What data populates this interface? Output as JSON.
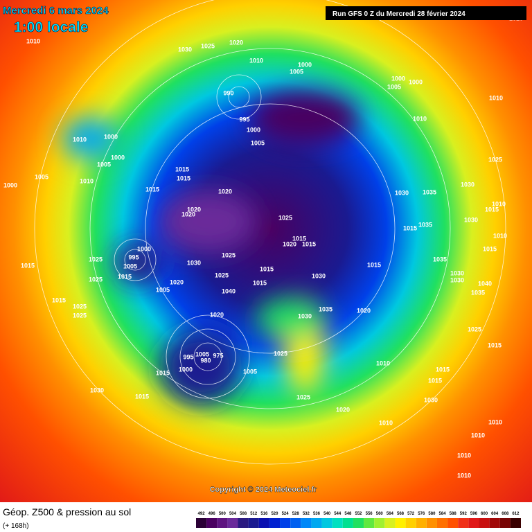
{
  "header": {
    "date": "Mercredi 6 mars 2024",
    "time": "1:00 locale",
    "run": "Run GFS 0 Z du Mercredi 28 février 2024"
  },
  "copyright": "Copyright © 2024 Meteociel.fr",
  "footer": {
    "title": "Géop. Z500 & pression au sol",
    "lead": "(+ 168h)"
  },
  "legend": {
    "ticks": [
      492,
      496,
      500,
      504,
      508,
      512,
      516,
      520,
      524,
      528,
      532,
      536,
      540,
      544,
      548,
      552,
      556,
      560,
      564,
      568,
      572,
      576,
      580,
      584,
      588,
      592,
      596,
      600,
      604,
      608,
      612
    ],
    "colors": [
      "#2a0035",
      "#4a0060",
      "#5e1480",
      "#6a2a9a",
      "#2a1a80",
      "#1a1a90",
      "#0a10b0",
      "#0020d0",
      "#0040e8",
      "#0060f0",
      "#0088f8",
      "#00a8f0",
      "#00c8e0",
      "#00e0c0",
      "#00e090",
      "#20e060",
      "#60e840",
      "#a0f030",
      "#d8f020",
      "#fff000",
      "#ffd000",
      "#ffb000",
      "#ff9000",
      "#ff7000",
      "#ff5000",
      "#f03018",
      "#e01818",
      "#c81010",
      "#a00808",
      "#780404",
      "#3a0000"
    ]
  },
  "pressure_labels": [
    1010,
    1030,
    1025,
    1020,
    1010,
    1000,
    1005,
    990,
    1000,
    1000,
    1005,
    1010,
    1010,
    995,
    1000,
    1005,
    1010,
    1000,
    1000,
    1005,
    1025,
    1015,
    1015,
    1010,
    1005,
    1000,
    1015,
    1020,
    1030,
    1035,
    1030,
    1020,
    1020,
    1025,
    1015,
    1020,
    1015,
    1015,
    1035,
    1030,
    1015,
    1010,
    1010,
    1000,
    995,
    1005,
    1015,
    1030,
    1025,
    1015,
    1030,
    1015,
    1035,
    1030,
    1015,
    1025,
    1015,
    1025,
    1020,
    1005,
    1025,
    1040,
    1015,
    1030,
    1040,
    1035,
    1035,
    1020,
    1020,
    1030,
    1015,
    1025,
    1025,
    1025,
    1015,
    995,
    1005,
    980,
    975,
    1000,
    1015,
    1005,
    1025,
    1010,
    1015,
    1015,
    1030,
    1025,
    1030,
    1015,
    1020,
    1010,
    1010,
    1010,
    1010,
    1010,
    1010
  ]
}
